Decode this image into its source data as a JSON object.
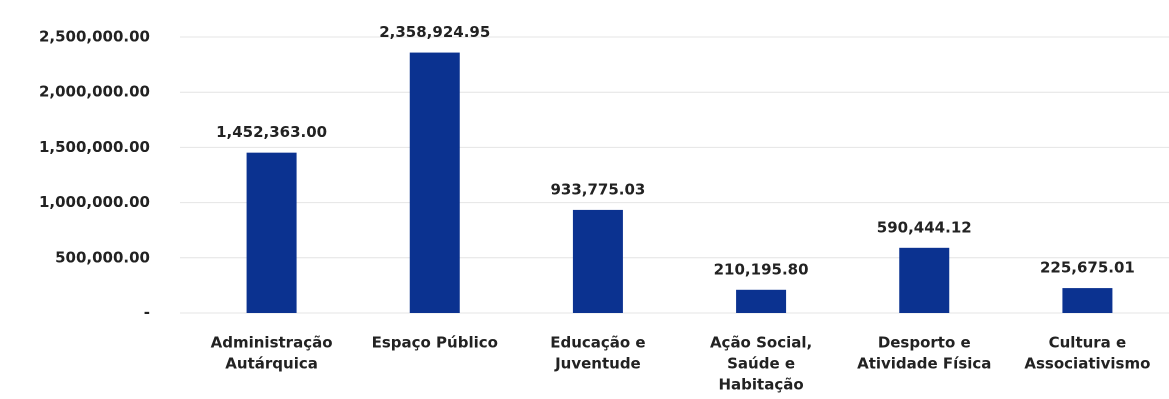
{
  "chart_data": {
    "type": "bar",
    "categories": [
      [
        "Administração",
        "Autárquica"
      ],
      [
        "Espaço Público"
      ],
      [
        "Educação e",
        "Juventude"
      ],
      [
        "Ação Social,",
        "Saúde e",
        "Habitação"
      ],
      [
        "Desporto e",
        "Atividade Física"
      ],
      [
        "Cultura e",
        "Associativismo"
      ]
    ],
    "values": [
      1452363.0,
      2358924.95,
      933775.03,
      210195.8,
      590444.12,
      225675.01
    ],
    "value_labels": [
      "1,452,363.00",
      "2,358,924.95",
      "933,775.03",
      "210,195.80",
      "590,444.12",
      "225,675.01"
    ],
    "color": "#0b3290",
    "ylim": [
      0,
      2500000
    ],
    "yticks": [
      {
        "value": 0,
        "label": "-"
      },
      {
        "value": 500000,
        "label": "500,000.00"
      },
      {
        "value": 1000000,
        "label": "1,000,000.00"
      },
      {
        "value": 1500000,
        "label": "1,500,000.00"
      },
      {
        "value": 2000000,
        "label": "2,000,000.00"
      },
      {
        "value": 2500000,
        "label": "2,500,000.00"
      }
    ],
    "grid": true
  }
}
